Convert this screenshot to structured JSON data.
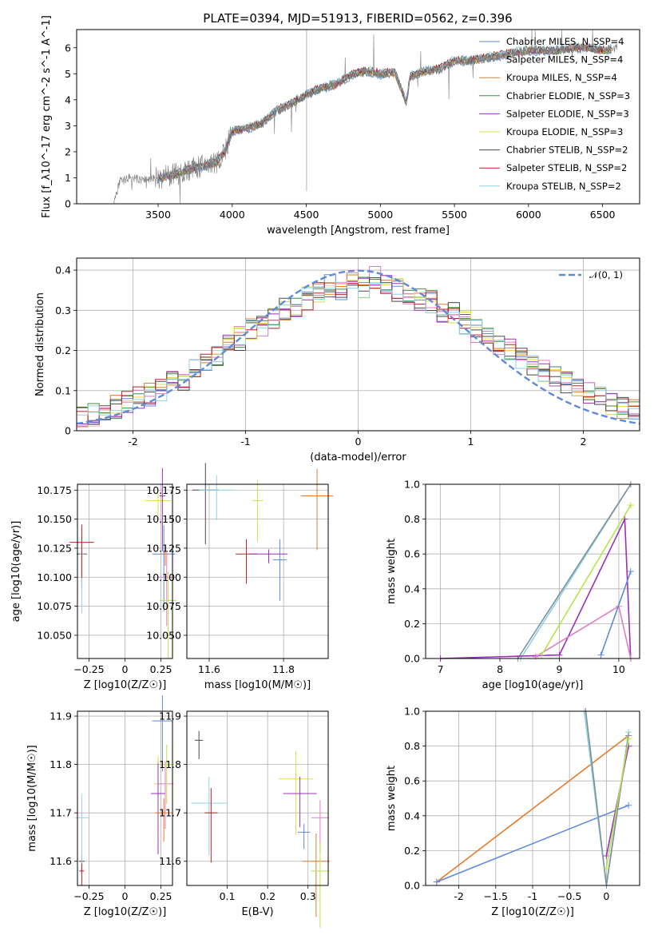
{
  "colors": {
    "c1": "#5f89d9",
    "c2": "#7d8f9e",
    "c3": "#e57b2a",
    "c4": "#3f8f3f",
    "c5": "#9b30b8",
    "c6": "#e0dc4a",
    "c7": "#4a4a4a",
    "c8": "#b3232b",
    "c9": "#8fd3e0",
    "pink": "#e07fbf",
    "lime": "#b7e34a"
  },
  "chart_data": [
    {
      "type": "line",
      "title": "PLATE=0394, MJD=51913, FIBERID=0562, z=0.396",
      "xlabel": "wavelength [Angstrom, rest frame]",
      "ylabel": "Flux [f_λ10^-17 erg cm^-2 s^-1 A^-1]",
      "xlim": [
        2950,
        6750
      ],
      "ylim": [
        0,
        6.7
      ],
      "xticks": [
        3500,
        4000,
        4500,
        5000,
        5500,
        6000,
        6500
      ],
      "yticks": [
        0,
        1,
        2,
        3,
        4,
        5,
        6
      ],
      "legend_position": "top-right",
      "legend": [
        "Chabrier MILES, N_SSP=4",
        "Salpeter MILES, N_SSP=4",
        "Kroupa MILES, N_SSP=4",
        "Chabrier ELODIE, N_SSP=3",
        "Salpeter ELODIE, N_SSP=3",
        "Kroupa ELODIE, N_SSP=3",
        "Chabrier STELIB, N_SSP=2",
        "Salpeter STELIB, N_SSP=2",
        "Kroupa STELIB, N_SSP=2"
      ],
      "series": [
        {
          "name": "data",
          "x": [
            3200,
            3240,
            3300,
            3350,
            3400,
            3500,
            3600,
            3700,
            3800,
            3900,
            3950,
            4000,
            4100,
            4200,
            4300,
            4400,
            4500,
            4600,
            4700,
            4800,
            4900,
            5000,
            5100,
            5175,
            5200,
            5300,
            5400,
            5500,
            5600,
            5700,
            5800,
            5900,
            6000,
            6100,
            6200,
            6300,
            6400,
            6500,
            6600
          ],
          "y": [
            0.0,
            0.85,
            1.0,
            0.95,
            0.92,
            1.0,
            1.1,
            1.3,
            1.45,
            1.6,
            2.0,
            2.8,
            2.9,
            3.1,
            3.6,
            3.85,
            4.2,
            4.45,
            4.6,
            4.95,
            5.1,
            5.0,
            5.05,
            3.9,
            4.9,
            5.1,
            5.2,
            5.5,
            5.5,
            5.6,
            5.7,
            5.8,
            5.9,
            5.9,
            5.9,
            6.0,
            6.0,
            5.9,
            6.0
          ]
        }
      ]
    },
    {
      "type": "line",
      "xlabel": "(data-model)/error",
      "ylabel": "Normed distribution",
      "xlim": [
        -2.5,
        2.5
      ],
      "ylim": [
        0,
        0.43
      ],
      "xticks": [
        -2,
        -1,
        0,
        1,
        2
      ],
      "yticks": [
        0.0,
        0.1,
        0.2,
        0.3,
        0.4
      ],
      "legend": [
        "𝒩(0, 1)"
      ],
      "legend_position": "top-right",
      "bin_width": 0.1,
      "series": [
        {
          "name": "𝒩(0, 1)",
          "x": [
            -2.5,
            -2,
            -1.5,
            -1,
            -0.5,
            0,
            0.5,
            1,
            1.5,
            2,
            2.5
          ],
          "y": [
            0.018,
            0.054,
            0.13,
            0.242,
            0.352,
            0.399,
            0.352,
            0.242,
            0.13,
            0.054,
            0.018
          ]
        },
        {
          "name": "Chabrier MILES, N_SSP=4",
          "values": [
            0.03,
            0.04,
            0.05,
            0.06,
            0.07,
            0.08,
            0.09,
            0.1,
            0.12,
            0.13,
            0.15,
            0.17,
            0.19,
            0.21,
            0.23,
            0.25,
            0.26,
            0.28,
            0.3,
            0.31,
            0.33,
            0.34,
            0.36,
            0.35,
            0.37,
            0.36,
            0.38,
            0.36,
            0.35,
            0.34,
            0.33,
            0.32,
            0.3,
            0.29,
            0.27,
            0.25,
            0.23,
            0.22,
            0.2,
            0.18,
            0.16,
            0.15,
            0.13,
            0.12,
            0.1,
            0.09,
            0.08,
            0.07,
            0.06,
            0.05
          ]
        }
      ]
    },
    {
      "type": "scatter",
      "xlabel": "Z [log10(Z/Z☉)]",
      "ylabel": "age  [log10(age/yr)]",
      "xlim": [
        -0.33,
        0.33
      ],
      "ylim": [
        10.03,
        10.18
      ],
      "xticks": [
        -0.25,
        0.0,
        0.25
      ],
      "yticks": [
        10.05,
        10.075,
        10.1,
        10.125,
        10.15,
        10.175
      ],
      "points": [
        {
          "x": -0.3,
          "y": 10.12
        },
        {
          "x": -0.3,
          "y": 10.12
        },
        {
          "x": -0.3,
          "y": 10.13
        },
        {
          "x": 0.23,
          "y": 10.166
        },
        {
          "x": 0.26,
          "y": 10.17
        },
        {
          "x": 0.27,
          "y": 10.12
        },
        {
          "x": 0.28,
          "y": 10.12
        },
        {
          "x": 0.29,
          "y": 10.1
        },
        {
          "x": 0.3,
          "y": 10.08
        }
      ]
    },
    {
      "type": "scatter",
      "xlabel": "mass [log10(M/M☉)]",
      "ylabel": "",
      "xlim": [
        11.54,
        11.92
      ],
      "ylim": [
        10.03,
        10.18
      ],
      "xticks": [
        11.6,
        11.8
      ],
      "yticks": [
        10.05,
        10.075,
        10.1,
        10.125,
        10.15,
        10.175
      ],
      "points": [
        {
          "x": 11.59,
          "y": 10.175
        },
        {
          "x": 11.62,
          "y": 10.175
        },
        {
          "x": 11.7,
          "y": 10.12
        },
        {
          "x": 11.73,
          "y": 10.166
        },
        {
          "x": 11.76,
          "y": 10.12
        },
        {
          "x": 11.79,
          "y": 10.115
        },
        {
          "x": 11.89,
          "y": 10.17
        }
      ]
    },
    {
      "type": "line",
      "xlabel": "age  [log10(age/yr)]",
      "ylabel": "mass weight",
      "xlim": [
        6.75,
        10.35
      ],
      "ylim": [
        0,
        1.0
      ],
      "xticks": [
        7,
        8,
        9,
        10
      ],
      "yticks": [
        0.0,
        0.2,
        0.4,
        0.6,
        0.8,
        1.0
      ],
      "series": [
        {
          "x": [
            8.35,
            10.2
          ],
          "y": [
            0.0,
            1.0
          ]
        },
        {
          "x": [
            8.3,
            10.2
          ],
          "y": [
            0.0,
            1.0
          ]
        },
        {
          "x": [
            7.0,
            9.0,
            10.1,
            10.2
          ],
          "y": [
            0.0,
            0.02,
            0.8,
            0.0
          ]
        },
        {
          "x": [
            8.6,
            10.0,
            10.2
          ],
          "y": [
            0.01,
            0.3,
            0.0
          ]
        },
        {
          "x": [
            8.7,
            10.2
          ],
          "y": [
            0.02,
            0.88
          ]
        },
        {
          "x": [
            9.7,
            10.2
          ],
          "y": [
            0.02,
            0.5
          ]
        }
      ]
    },
    {
      "type": "scatter",
      "xlabel": "Z [log10(Z/Z☉)]",
      "ylabel": "mass [log10(M/M☉)]",
      "xlim": [
        -0.33,
        0.33
      ],
      "ylim": [
        11.55,
        11.91
      ],
      "xticks": [
        -0.25,
        0.0,
        0.25
      ],
      "yticks": [
        11.6,
        11.7,
        11.8,
        11.9
      ],
      "points": [
        {
          "x": -0.3,
          "y": 11.6
        },
        {
          "x": -0.3,
          "y": 11.69
        },
        {
          "x": -0.3,
          "y": 11.58
        },
        {
          "x": 0.23,
          "y": 11.76
        },
        {
          "x": 0.23,
          "y": 11.74
        },
        {
          "x": 0.26,
          "y": 11.89
        },
        {
          "x": 0.27,
          "y": 11.7
        },
        {
          "x": 0.28,
          "y": 11.76
        },
        {
          "x": 0.29,
          "y": 11.8
        }
      ]
    },
    {
      "type": "scatter",
      "xlabel": "E(B-V)",
      "ylabel": "",
      "xlim": [
        0.0,
        0.35
      ],
      "ylim": [
        11.55,
        11.91
      ],
      "xticks": [
        0.1,
        0.2,
        0.3
      ],
      "yticks": [
        11.6,
        11.7,
        11.8,
        11.9
      ],
      "points": [
        {
          "x": 0.03,
          "y": 11.85
        },
        {
          "x": 0.055,
          "y": 11.72
        },
        {
          "x": 0.06,
          "y": 11.7
        },
        {
          "x": 0.27,
          "y": 11.77
        },
        {
          "x": 0.28,
          "y": 11.74
        },
        {
          "x": 0.29,
          "y": 11.66
        },
        {
          "x": 0.32,
          "y": 11.6
        },
        {
          "x": 0.33,
          "y": 11.69
        },
        {
          "x": 0.33,
          "y": 11.58
        }
      ]
    },
    {
      "type": "line",
      "xlabel": "Z [log10(Z/Z☉)]",
      "ylabel": "mass weight",
      "xlim": [
        -2.45,
        0.45
      ],
      "ylim": [
        0,
        1.0
      ],
      "xticks": [
        -2.0,
        -1.5,
        -1.0,
        -0.5,
        0.0
      ],
      "yticks": [
        0.0,
        0.2,
        0.4,
        0.6,
        0.8,
        1.0
      ],
      "series": [
        {
          "x": [
            -2.3,
            0.3
          ],
          "y": [
            0.02,
            0.86
          ]
        },
        {
          "x": [
            -2.3,
            0.3
          ],
          "y": [
            0.02,
            0.46
          ]
        },
        {
          "x": [
            -0.3,
            0.0,
            0.3
          ],
          "y": [
            1.0,
            0.0,
            0.88
          ]
        },
        {
          "x": [
            -0.28,
            0.0,
            0.3
          ],
          "y": [
            1.0,
            0.0,
            0.86
          ]
        },
        {
          "x": [
            0.0,
            0.3
          ],
          "y": [
            0.17,
            0.8
          ]
        },
        {
          "x": [
            0.0,
            0.3
          ],
          "y": [
            0.1,
            0.84
          ]
        }
      ]
    }
  ]
}
